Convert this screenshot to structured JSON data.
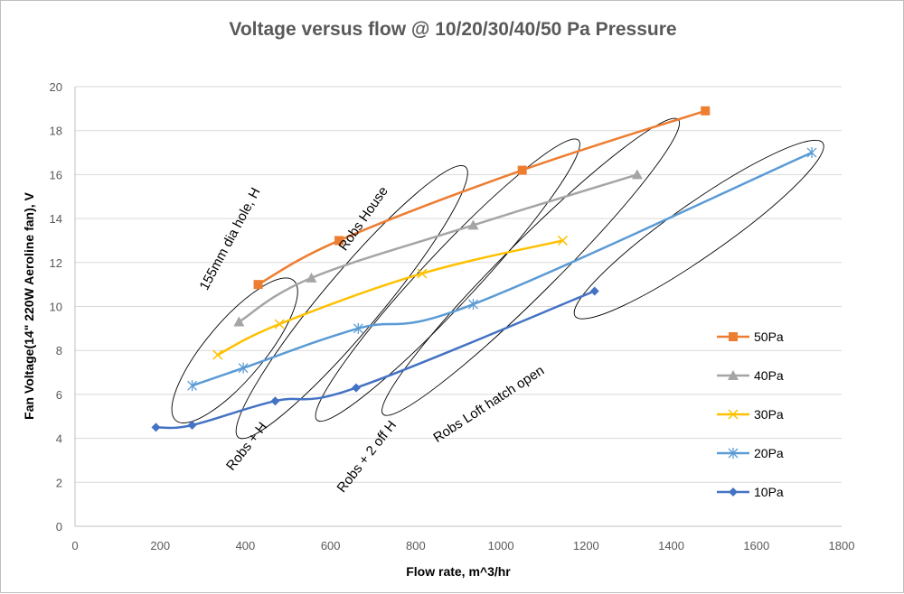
{
  "chart_data": {
    "type": "line",
    "title": "Voltage versus flow @ 10/20/30/40/50 Pa Pressure",
    "xlabel": "Flow rate, m^3/hr",
    "ylabel": "Fan Voltage(14\" 220W Aeroline fan), V",
    "xlim": [
      0,
      1800
    ],
    "ylim": [
      0,
      20
    ],
    "xticks": [
      0,
      200,
      400,
      600,
      800,
      1000,
      1200,
      1400,
      1600,
      1800
    ],
    "yticks": [
      0,
      2,
      4,
      6,
      8,
      10,
      12,
      14,
      16,
      18,
      20
    ],
    "grid": "horizontal",
    "legend_position": "right",
    "series": [
      {
        "name": "50Pa",
        "color": "#ed7d31",
        "marker": "square",
        "points": [
          [
            430,
            11.0
          ],
          [
            620,
            13.0
          ],
          [
            1050,
            16.2
          ],
          [
            1480,
            18.9
          ]
        ]
      },
      {
        "name": "40Pa",
        "color": "#a5a5a5",
        "marker": "triangle",
        "points": [
          [
            385,
            9.3
          ],
          [
            555,
            11.3
          ],
          [
            935,
            13.7
          ],
          [
            1320,
            16.0
          ]
        ]
      },
      {
        "name": "30Pa",
        "color": "#ffc000",
        "marker": "x",
        "points": [
          [
            335,
            7.8
          ],
          [
            480,
            9.2
          ],
          [
            815,
            11.5
          ],
          [
            1145,
            13.0
          ]
        ]
      },
      {
        "name": "20Pa",
        "color": "#5b9bd5",
        "marker": "star",
        "points": [
          [
            275,
            6.4
          ],
          [
            395,
            7.2
          ],
          [
            665,
            9.0
          ],
          [
            935,
            10.1
          ],
          [
            1730,
            17.0
          ]
        ]
      },
      {
        "name": "10Pa",
        "color": "#4472c4",
        "marker": "diamond",
        "points": [
          [
            190,
            4.5
          ],
          [
            275,
            4.6
          ],
          [
            470,
            5.7
          ],
          [
            660,
            6.3
          ],
          [
            1220,
            10.7
          ]
        ]
      }
    ],
    "annotations": [
      {
        "text": "155mm dia hole, H",
        "at": [
          310,
          10.7
        ],
        "angle": -62
      },
      {
        "text": "Robs House",
        "at": [
          635,
          12.5
        ],
        "angle": -55
      },
      {
        "text": "Robs + H",
        "at": [
          370,
          2.5
        ],
        "angle": -52
      },
      {
        "text": "Robs + 2 off H",
        "at": [
          630,
          1.5
        ],
        "angle": -52
      },
      {
        "text": "Robs Loft hatch open",
        "at": [
          850,
          3.8
        ],
        "angle": -33
      }
    ],
    "ellipses": [
      {
        "cx": 375,
        "cy": 8.0,
        "rx": 215,
        "ry": 0.6,
        "angle": -50
      },
      {
        "cx": 650,
        "cy": 10.2,
        "rx": 415,
        "ry": 0.6,
        "angle": -50
      },
      {
        "cx": 875,
        "cy": 11.2,
        "rx": 450,
        "ry": 0.55,
        "angle": -47
      },
      {
        "cx": 1070,
        "cy": 11.8,
        "rx": 490,
        "ry": 0.55,
        "angle": -45
      },
      {
        "cx": 1465,
        "cy": 13.5,
        "rx": 355,
        "ry": 0.55,
        "angle": -35
      }
    ]
  }
}
